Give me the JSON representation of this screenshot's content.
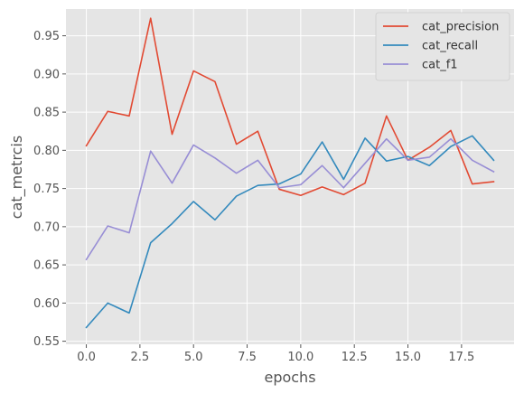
{
  "chart_data": {
    "type": "line",
    "title": "",
    "xlabel": "epochs",
    "ylabel": "cat_metrcis",
    "xlim": [
      -0.95,
      19.95
    ],
    "ylim": [
      0.546,
      0.985
    ],
    "x_ticks": [
      0.0,
      2.5,
      5.0,
      7.5,
      10.0,
      12.5,
      15.0,
      17.5
    ],
    "x_tick_labels": [
      "0.0",
      "2.5",
      "5.0",
      "7.5",
      "10.0",
      "12.5",
      "15.0",
      "17.5"
    ],
    "y_ticks": [
      0.55,
      0.6,
      0.65,
      0.7,
      0.75,
      0.8,
      0.85,
      0.9,
      0.95
    ],
    "y_tick_labels": [
      "0.55",
      "0.60",
      "0.65",
      "0.70",
      "0.75",
      "0.80",
      "0.85",
      "0.90",
      "0.95"
    ],
    "grid": true,
    "style": "ggplot",
    "legend_position": "top-right",
    "x": [
      0,
      1,
      2,
      3,
      4,
      5,
      6,
      7,
      8,
      9,
      10,
      11,
      12,
      13,
      14,
      15,
      16,
      17,
      18,
      19
    ],
    "series": [
      {
        "name": "cat_precision",
        "color": "#E24A33",
        "values": [
          0.806,
          0.851,
          0.845,
          0.973,
          0.821,
          0.904,
          0.89,
          0.808,
          0.825,
          0.749,
          0.741,
          0.752,
          0.742,
          0.757,
          0.845,
          0.787,
          0.804,
          0.826,
          0.756,
          0.759
        ]
      },
      {
        "name": "cat_recall",
        "color": "#348ABD",
        "values": [
          0.568,
          0.6,
          0.587,
          0.679,
          0.704,
          0.733,
          0.709,
          0.74,
          0.754,
          0.756,
          0.769,
          0.811,
          0.762,
          0.816,
          0.786,
          0.792,
          0.78,
          0.805,
          0.819,
          0.787
        ]
      },
      {
        "name": "cat_f1",
        "color": "#988ED5",
        "values": [
          0.657,
          0.701,
          0.692,
          0.799,
          0.757,
          0.807,
          0.79,
          0.77,
          0.787,
          0.751,
          0.755,
          0.78,
          0.751,
          0.783,
          0.815,
          0.787,
          0.791,
          0.815,
          0.787,
          0.772
        ]
      }
    ]
  }
}
